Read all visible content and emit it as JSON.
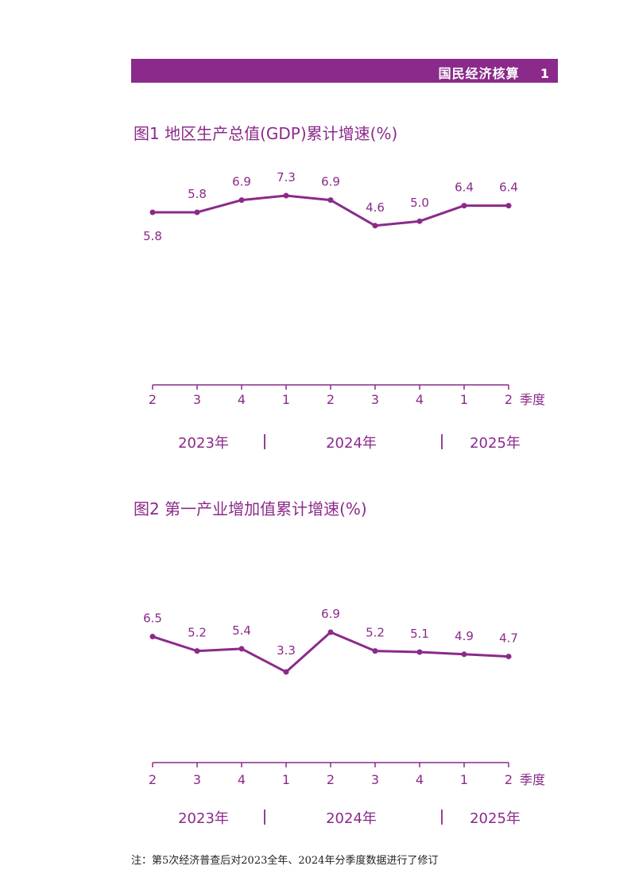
{
  "header": {
    "section": "国民经济核算",
    "page_number": "1"
  },
  "colors": {
    "accent": "#8b2a8a"
  },
  "chart_data": [
    {
      "type": "line",
      "title": "图1  地区生产总值(GDP)累计增速(%)",
      "categories": [
        "2",
        "3",
        "4",
        "1",
        "2",
        "3",
        "4",
        "1",
        "2"
      ],
      "x_unit": "季度",
      "year_groups": [
        "2023年",
        "2024年",
        "2025年"
      ],
      "values": [
        5.8,
        5.8,
        6.9,
        7.3,
        6.9,
        4.6,
        5.0,
        6.4,
        6.4
      ],
      "labels": [
        "5.8",
        "5.8",
        "6.9",
        "7.3",
        "6.9",
        "4.6",
        "5.0",
        "6.4",
        "6.4"
      ],
      "grid": false
    },
    {
      "type": "line",
      "title": "图2  第一产业增加值累计增速(%)",
      "categories": [
        "2",
        "3",
        "4",
        "1",
        "2",
        "3",
        "4",
        "1",
        "2"
      ],
      "x_unit": "季度",
      "year_groups": [
        "2023年",
        "2024年",
        "2025年"
      ],
      "values": [
        6.5,
        5.2,
        5.4,
        3.3,
        6.9,
        5.2,
        5.1,
        4.9,
        4.7
      ],
      "labels": [
        "6.5",
        "5.2",
        "5.4",
        "3.3",
        "6.9",
        "5.2",
        "5.1",
        "4.9",
        "4.7"
      ],
      "grid": false
    }
  ],
  "footnote": "注：第5次经济普查后对2023全年、2024年分季度数据进行了修订"
}
